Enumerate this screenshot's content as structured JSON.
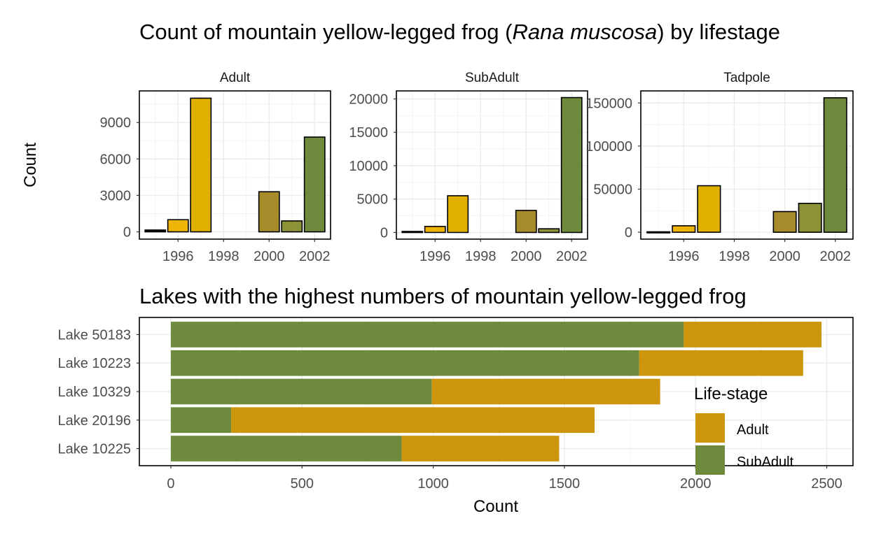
{
  "colors": {
    "Adult": "#cd950c",
    "SubAdult": "#6e8b3d",
    "year_fill": {
      "1995": "#000000",
      "1996": "#eeb408",
      "1997": "#e0b000",
      "2000": "#a68b2a",
      "2001": "#8b9238",
      "2002": "#6e8b3d"
    }
  },
  "chart_data": [
    {
      "type": "bar",
      "title_prefix": "Count of mountain yellow-legged frog (",
      "title_italic": "Rana muscosa",
      "title_suffix": ") by lifestage",
      "ylabel": "Count",
      "xticks": [
        "1996",
        "1998",
        "2000",
        "2002"
      ],
      "facets": [
        {
          "name": "Adult",
          "years": [
            1995,
            1996,
            1997,
            2000,
            2001,
            2002
          ],
          "values": [
            150,
            1000,
            11000,
            3300,
            900,
            7800
          ],
          "ylim": [
            -600,
            11600
          ],
          "yticks": [
            0,
            3000,
            6000,
            9000
          ]
        },
        {
          "name": "SubAdult",
          "years": [
            1995,
            1996,
            1997,
            2000,
            2001,
            2002
          ],
          "values": [
            150,
            900,
            5500,
            3300,
            550,
            20200
          ],
          "ylim": [
            -1000,
            21200
          ],
          "yticks": [
            0,
            5000,
            10000,
            15000,
            20000
          ]
        },
        {
          "name": "Tadpole",
          "years": [
            1995,
            1996,
            1997,
            2000,
            2001,
            2002
          ],
          "values": [
            500,
            7500,
            54000,
            24000,
            33500,
            156000
          ],
          "ylim": [
            -8000,
            164000
          ],
          "yticks": [
            0,
            50000,
            100000,
            150000
          ]
        }
      ]
    },
    {
      "type": "bar",
      "orientation": "horizontal",
      "stacked": true,
      "title": "Lakes with the highest numbers of mountain yellow-legged frog",
      "xlabel": "Count",
      "categories": [
        "Lake 50183",
        "Lake 10223",
        "Lake 10329",
        "Lake 20196",
        "Lake 10225"
      ],
      "series": [
        {
          "name": "SubAdult",
          "values": [
            1955,
            1785,
            995,
            230,
            880
          ]
        },
        {
          "name": "Adult",
          "values": [
            525,
            625,
            870,
            1385,
            600
          ]
        }
      ],
      "xlim": [
        -120,
        2600
      ],
      "xticks": [
        0,
        500,
        1000,
        1500,
        2000,
        2500
      ],
      "legend": {
        "title": "Life-stage",
        "items": [
          "Adult",
          "SubAdult"
        ],
        "position": "inside-bottom-right"
      }
    }
  ]
}
